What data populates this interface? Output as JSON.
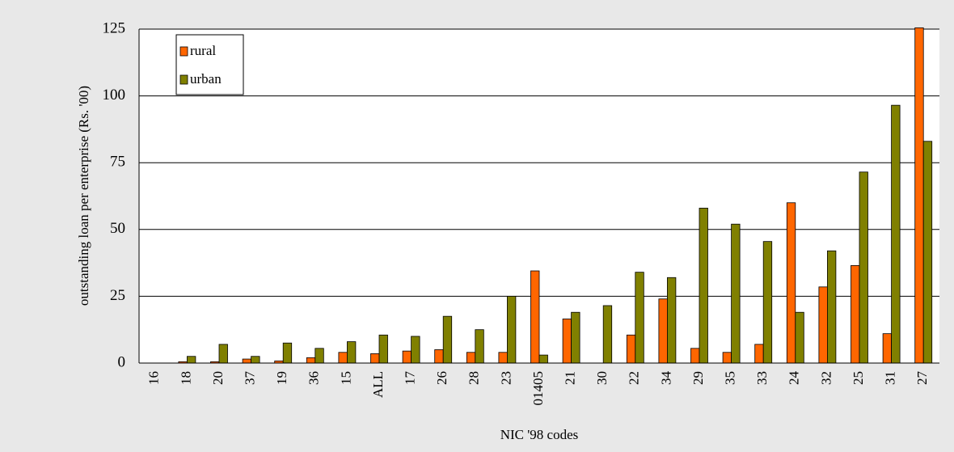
{
  "chart_data": {
    "type": "bar",
    "xlabel": "NIC '98 codes",
    "ylabel": "outstanding loan per enterprise (Rs. '00)",
    "ylim": [
      0,
      125
    ],
    "yticks": [
      "0",
      "25",
      "50",
      "75",
      "100",
      "125"
    ],
    "grid": "horizontal",
    "legend_position": "top-left",
    "categories": [
      "16",
      "18",
      "20",
      "37",
      "19",
      "36",
      "15",
      "ALL",
      "17",
      "26",
      "28",
      "23",
      "01405",
      "21",
      "30",
      "22",
      "34",
      "29",
      "35",
      "33",
      "24",
      "32",
      "25",
      "31",
      "27"
    ],
    "series": [
      {
        "name": "rural",
        "color": "#ff6600",
        "values": [
          0,
          0.5,
          0.5,
          1.5,
          0.8,
          2,
          4,
          3.5,
          4.5,
          5,
          4,
          4,
          34.5,
          16.5,
          0,
          10.5,
          24,
          5.5,
          4,
          7,
          60,
          28.5,
          36.5,
          11,
          125.5
        ]
      },
      {
        "name": "urban",
        "color": "#808000",
        "values": [
          0,
          2.5,
          7,
          2.5,
          7.5,
          5.5,
          8,
          10.5,
          10,
          17.5,
          12.5,
          25,
          3,
          19,
          21.5,
          34,
          32,
          58,
          52,
          45.5,
          19,
          42,
          71.5,
          96.5,
          83
        ]
      }
    ]
  }
}
